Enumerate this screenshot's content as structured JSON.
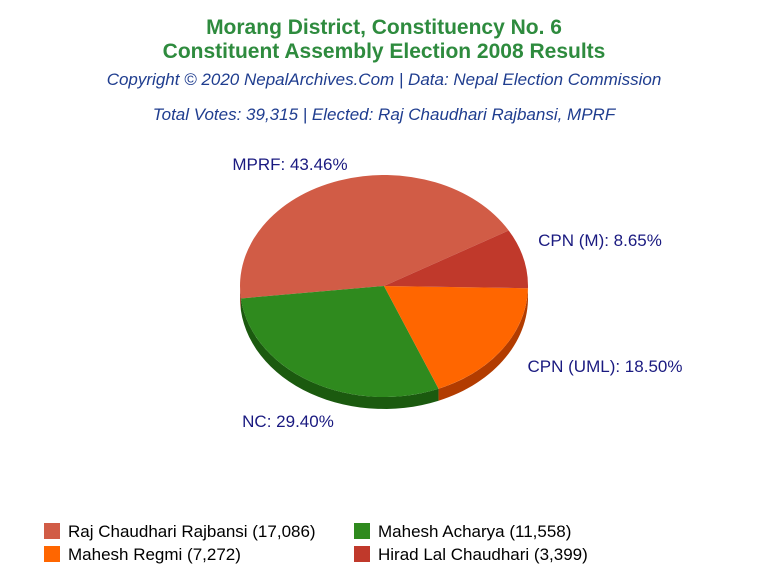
{
  "header": {
    "title_line1": "Morang District, Constituency No. 6",
    "title_line2": "Constituent Assembly Election 2008 Results",
    "copyright": "Copyright © 2020 NepalArchives.Com | Data: Nepal Election Commission",
    "summary": "Total Votes: 39,315 | Elected: Raj Chaudhari Rajbansi, MPRF"
  },
  "chart_data": {
    "type": "pie",
    "title": "Morang District, Constituency No. 6 Constituent Assembly Election 2008 Results",
    "slices": [
      {
        "label": "MPRF: 43.46%",
        "party": "MPRF",
        "percent": 43.46,
        "candidate": "Raj Chaudhari Rajbansi (17,086)",
        "votes": 17086,
        "color": "#d15c46",
        "side": "#9c3a2a"
      },
      {
        "label": "NC: 29.40%",
        "party": "NC",
        "percent": 29.4,
        "candidate": "Mahesh Acharya (11,558)",
        "votes": 11558,
        "color": "#2f8a1e",
        "side": "#1b5a0f"
      },
      {
        "label": "CPN (UML): 18.50%",
        "party": "CPN (UML)",
        "percent": 18.5,
        "candidate": "Mahesh Regmi (7,272)",
        "votes": 7272,
        "color": "#ff6600",
        "side": "#b23c00"
      },
      {
        "label": "CPN (M): 8.65%",
        "party": "CPN (M)",
        "percent": 8.65,
        "candidate": "Hirad Lal Chaudhari (3,399)",
        "votes": 3399,
        "color": "#c0392b",
        "side": "#82201a"
      }
    ],
    "label_color": "#1a1a80",
    "legend_placement": "bottom"
  }
}
